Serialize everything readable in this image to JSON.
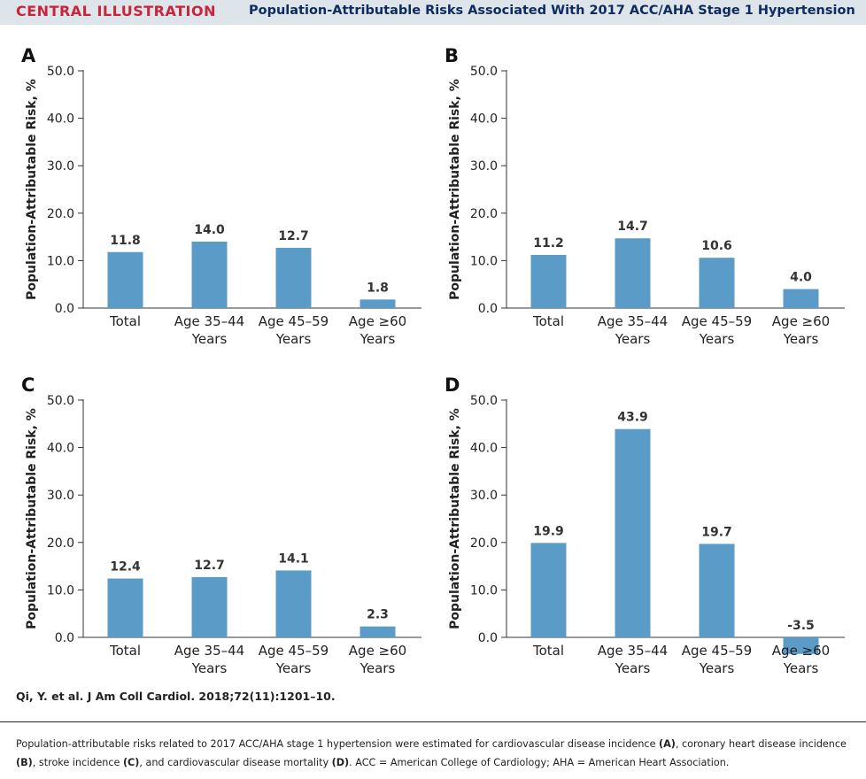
{
  "header": {
    "label": "CENTRAL ILLUSTRATION",
    "title": "Population-Attributable Risks Associated With 2017 ACC/AHA Stage 1 Hypertension"
  },
  "colors": {
    "bar": "#5b9bc8",
    "header_bg": "#dde4ea",
    "header_label": "#c8253a",
    "header_title": "#0d2b5e"
  },
  "chart_data": [
    {
      "panel": "A",
      "type": "bar",
      "categories": [
        [
          "Total"
        ],
        [
          "Age 35–44",
          "Years"
        ],
        [
          "Age 45–59",
          "Years"
        ],
        [
          "Age ≥60",
          "Years"
        ]
      ],
      "values": [
        11.8,
        14.0,
        12.7,
        1.8
      ],
      "ylabel": "Population-Attributable Risk, %",
      "ylim": [
        0,
        50
      ],
      "yticks": [
        "0.0",
        "10.0",
        "20.0",
        "30.0",
        "40.0",
        "50.0"
      ]
    },
    {
      "panel": "B",
      "type": "bar",
      "categories": [
        [
          "Total"
        ],
        [
          "Age 35–44",
          "Years"
        ],
        [
          "Age 45–59",
          "Years"
        ],
        [
          "Age ≥60",
          "Years"
        ]
      ],
      "values": [
        11.2,
        14.7,
        10.6,
        4.0
      ],
      "ylabel": "Population-Attributable Risk, %",
      "ylim": [
        0,
        50
      ],
      "yticks": [
        "0.0",
        "10.0",
        "20.0",
        "30.0",
        "40.0",
        "50.0"
      ]
    },
    {
      "panel": "C",
      "type": "bar",
      "categories": [
        [
          "Total"
        ],
        [
          "Age 35–44",
          "Years"
        ],
        [
          "Age 45–59",
          "Years"
        ],
        [
          "Age ≥60",
          "Years"
        ]
      ],
      "values": [
        12.4,
        12.7,
        14.1,
        2.3
      ],
      "ylabel": "Population-Attributable Risk, %",
      "ylim": [
        0,
        50
      ],
      "yticks": [
        "0.0",
        "10.0",
        "20.0",
        "30.0",
        "40.0",
        "50.0"
      ]
    },
    {
      "panel": "D",
      "type": "bar",
      "categories": [
        [
          "Total"
        ],
        [
          "Age 35–44",
          "Years"
        ],
        [
          "Age 45–59",
          "Years"
        ],
        [
          "Age ≥60",
          "Years"
        ]
      ],
      "values": [
        19.9,
        43.9,
        19.7,
        -3.5
      ],
      "ylabel": "Population-Attributable Risk, %",
      "ylim": [
        0,
        50
      ],
      "yticks": [
        "0.0",
        "10.0",
        "20.0",
        "30.0",
        "40.0",
        "50.0"
      ]
    }
  ],
  "citation": "Qi, Y. et al. J Am Coll Cardiol. 2018;72(11):1201–10.",
  "caption": {
    "p1": "Population-attributable risks related to 2017 ACC/AHA stage 1 hypertension were estimated for cardiovascular disease incidence ",
    "a": "(A)",
    "p2": ", coronary heart disease incidence ",
    "b": "(B)",
    "p3": ", stroke incidence ",
    "c": "(C)",
    "p4": ", and cardiovascular disease mortality ",
    "d": "(D)",
    "p5": ". ACC = American College of Cardiology; AHA = American Heart Association."
  }
}
